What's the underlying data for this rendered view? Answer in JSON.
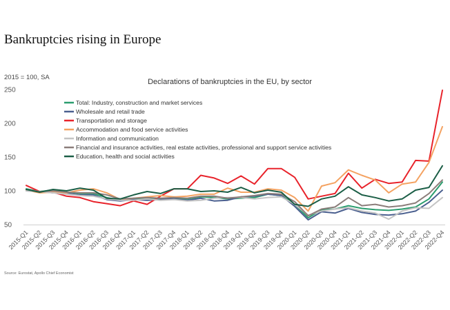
{
  "headline": "Bankruptcies rising in Europe",
  "units_note": "2015 = 100, SA",
  "source": "Source: Eurostat, Apollo Chief Economist",
  "chart_data": {
    "type": "line",
    "title": "Declarations of bankruptcies in the EU, by sector",
    "xlabel": "",
    "ylabel": "",
    "ylim": [
      50,
      250
    ],
    "yticks": [
      50,
      100,
      150,
      200,
      250
    ],
    "grid": false,
    "legend_position": "top-left",
    "x": [
      "2015-Q1",
      "2015-Q2",
      "2015-Q3",
      "2015-Q4",
      "2016-Q1",
      "2016-Q2",
      "2016-Q3",
      "2016-Q4",
      "2017-Q1",
      "2017-Q2",
      "2017-Q3",
      "2017-Q4",
      "2018-Q1",
      "2018-Q2",
      "2018-Q3",
      "2018-Q4",
      "2019-Q1",
      "2019-Q2",
      "2019-Q3",
      "2019-Q4",
      "2020-Q1",
      "2020-Q2",
      "2020-Q3",
      "2020-Q4",
      "2021-Q1",
      "2021-Q2",
      "2021-Q3",
      "2021-Q4",
      "2022-Q1",
      "2022-Q2",
      "2022-Q3",
      "2022-Q4"
    ],
    "series": [
      {
        "name": "Total: Industry, construction and market services",
        "color": "#2a9d6e",
        "values": [
          103,
          99,
          101,
          98,
          96,
          96,
          90,
          86,
          88,
          89,
          88,
          89,
          88,
          91,
          90,
          88,
          89,
          90,
          95,
          93,
          80,
          60,
          72,
          73,
          78,
          74,
          72,
          71,
          73,
          76,
          88,
          113
        ]
      },
      {
        "name": "Wholesale and retail trade",
        "color": "#4a5f8f",
        "values": [
          100,
          99,
          97,
          96,
          94,
          94,
          87,
          85,
          87,
          86,
          87,
          88,
          86,
          89,
          85,
          86,
          91,
          92,
          95,
          93,
          77,
          57,
          69,
          67,
          74,
          68,
          65,
          64,
          66,
          70,
          83,
          101
        ]
      },
      {
        "name": "Transportation and storage",
        "color": "#e8222a",
        "values": [
          108,
          99,
          98,
          92,
          90,
          84,
          81,
          78,
          85,
          80,
          92,
          103,
          103,
          123,
          119,
          111,
          122,
          110,
          133,
          133,
          120,
          88,
          92,
          96,
          126,
          104,
          117,
          111,
          113,
          145,
          144,
          249
        ]
      },
      {
        "name": "Accommodation and food service activities",
        "color": "#f4a261",
        "values": [
          101,
          97,
          98,
          97,
          101,
          103,
          97,
          87,
          89,
          91,
          93,
          91,
          92,
          95,
          95,
          104,
          98,
          98,
          103,
          101,
          90,
          70,
          107,
          112,
          131,
          123,
          116,
          97,
          110,
          113,
          142,
          195
        ]
      },
      {
        "name": "Information and communication",
        "color": "#c4c4c4",
        "values": [
          100,
          99,
          97,
          95,
          93,
          92,
          88,
          86,
          86,
          88,
          86,
          87,
          85,
          86,
          89,
          90,
          90,
          88,
          90,
          91,
          80,
          64,
          70,
          73,
          75,
          70,
          67,
          58,
          70,
          75,
          74,
          90
        ]
      },
      {
        "name": "Financial and insurance activities, real estate activities, professional and support service activities",
        "color": "#8b7d7a",
        "values": [
          102,
          99,
          100,
          98,
          97,
          97,
          94,
          88,
          89,
          90,
          89,
          90,
          89,
          92,
          92,
          89,
          91,
          93,
          96,
          95,
          84,
          63,
          73,
          76,
          90,
          78,
          80,
          76,
          78,
          82,
          96,
          116
        ]
      },
      {
        "name": "Education, health and social activities",
        "color": "#1b5e46",
        "values": [
          102,
          98,
          102,
          100,
          104,
          101,
          89,
          88,
          94,
          99,
          96,
          103,
          103,
          99,
          100,
          98,
          105,
          97,
          101,
          98,
          80,
          77,
          88,
          92,
          106,
          94,
          90,
          85,
          88,
          101,
          105,
          137
        ]
      }
    ]
  }
}
